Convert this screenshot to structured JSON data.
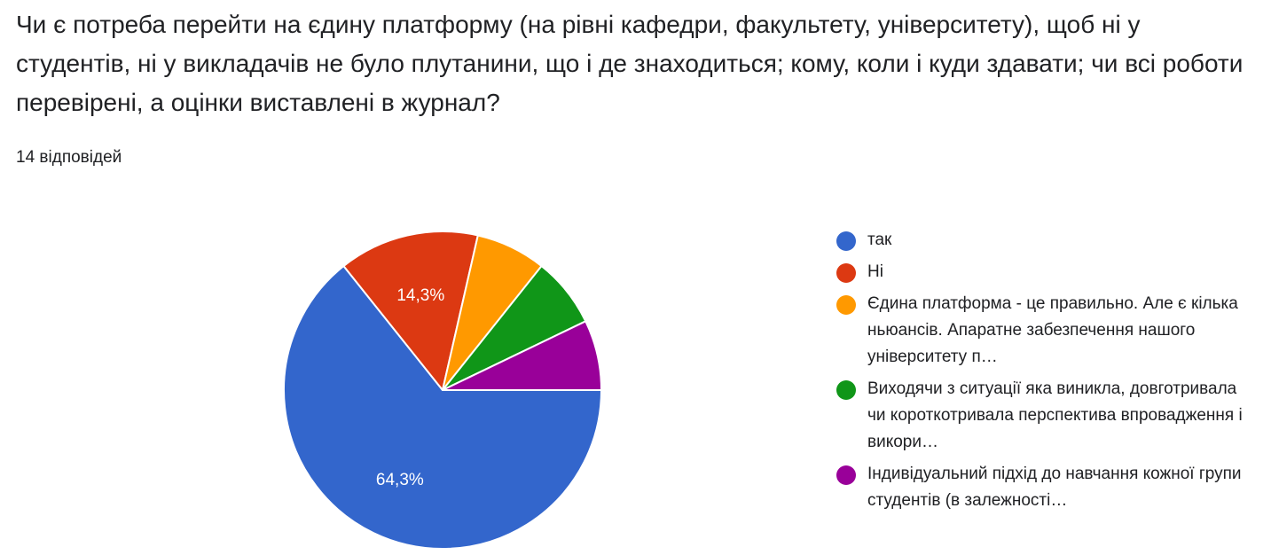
{
  "question": {
    "title": "Чи є потреба перейти на єдину платформу (на рівні кафедри, факультету, університету), щоб ні у студентів, ні у викладачів не було плутанини, що і де знаходиться; кому, коли і куди здавати; чи всі роботи перевірені, а оцінки виставлені в журнал?",
    "response_count": "14 відповідей"
  },
  "chart_data": {
    "type": "pie",
    "total_responses": 14,
    "legend_position": "right",
    "series": [
      {
        "name": "так",
        "value": 9,
        "percent_label": "64,3%",
        "color": "#3366cc"
      },
      {
        "name": "Ні",
        "value": 2,
        "percent_label": "14,3%",
        "color": "#dc3912"
      },
      {
        "name": "Єдина платформа - це правильно. Але є кілька ньюансів. Апаратне забезпечення нашого університету п…",
        "value": 1,
        "percent_label": "",
        "color": "#ff9900"
      },
      {
        "name": "Виходячи з ситуації яка виникла, довготривала чи короткотривала перспектива впровадження і викори…",
        "value": 1,
        "percent_label": "",
        "color": "#109618"
      },
      {
        "name": "Індивідуальний підхід до навчання кожної групи студентів (в залежності…",
        "value": 1,
        "percent_label": "",
        "color": "#990099"
      }
    ]
  }
}
